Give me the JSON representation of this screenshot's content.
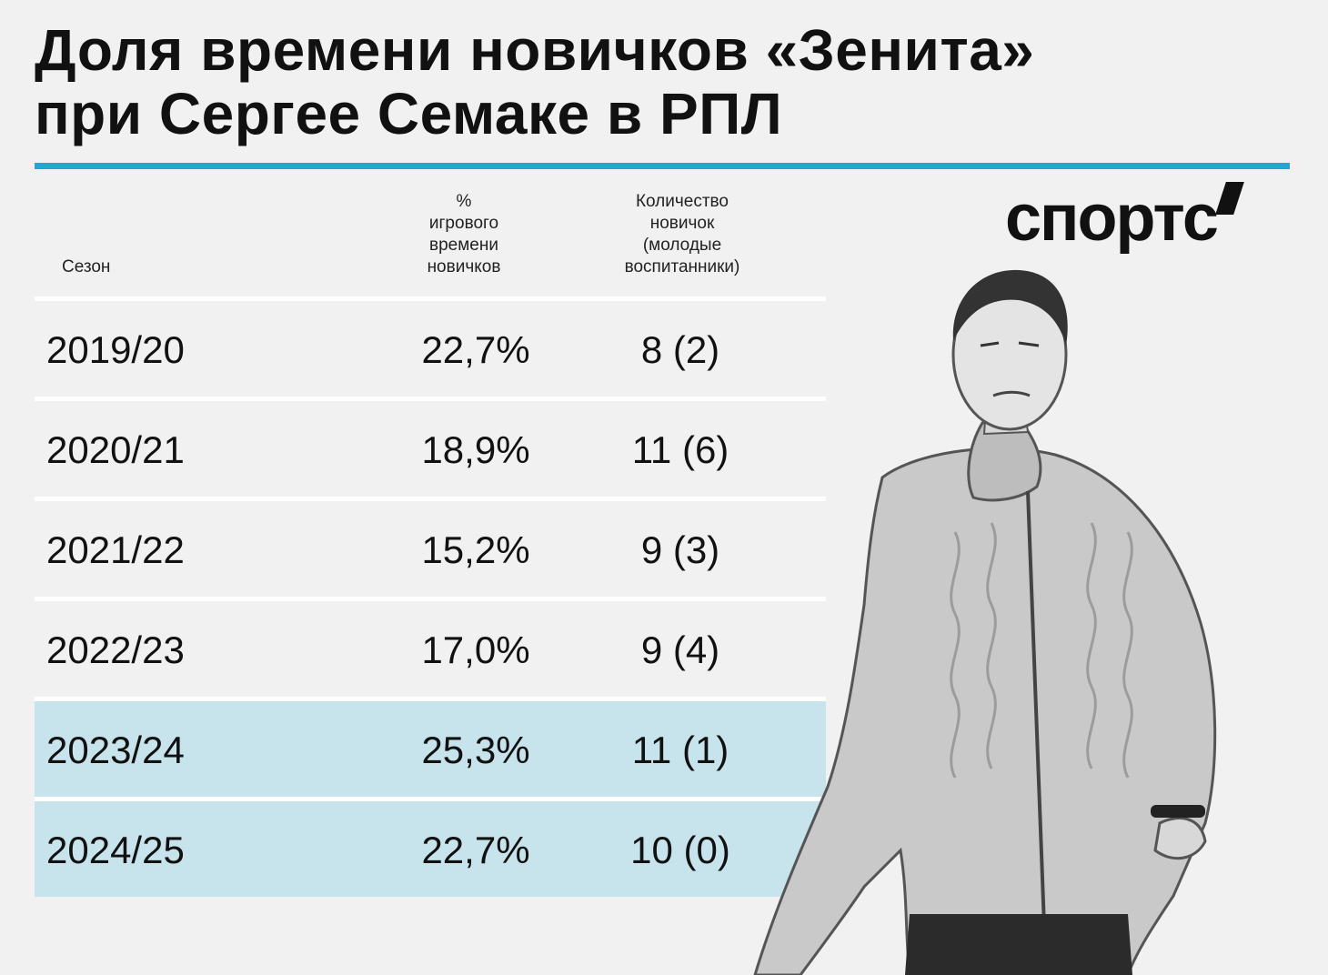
{
  "title_lines": [
    "Доля времени новичков «Зенита»",
    "при Сергее Семаке в РПЛ"
  ],
  "logo": "спортс",
  "chart_data": {
    "type": "table",
    "title": "Доля времени новичков «Зенита» при Сергее Семаке в РПЛ",
    "columns": {
      "season": "Сезон",
      "percent": [
        "%",
        "игрового",
        "времени",
        "новичков"
      ],
      "count": [
        "Количество",
        "новичок",
        "(молодые",
        "воспитанники)"
      ]
    },
    "rows": [
      {
        "season": "2019/20",
        "percent": "22,7%",
        "count": "8 (2)",
        "highlight": false
      },
      {
        "season": "2020/21",
        "percent": "18,9%",
        "count": "11 (6)",
        "highlight": false
      },
      {
        "season": "2021/22",
        "percent": "15,2%",
        "count": "9 (3)",
        "highlight": false
      },
      {
        "season": "2022/23",
        "percent": "17,0%",
        "count": "9 (4)",
        "highlight": false
      },
      {
        "season": "2023/24",
        "percent": "25,3%",
        "count": "11 (1)",
        "highlight": true
      },
      {
        "season": "2024/25",
        "percent": "22,7%",
        "count": "10 (0)",
        "highlight": true
      }
    ]
  },
  "colors": {
    "accent": "#1fa6d1",
    "highlight_row": "#c7e3ec",
    "background": "#f1f1f1"
  }
}
